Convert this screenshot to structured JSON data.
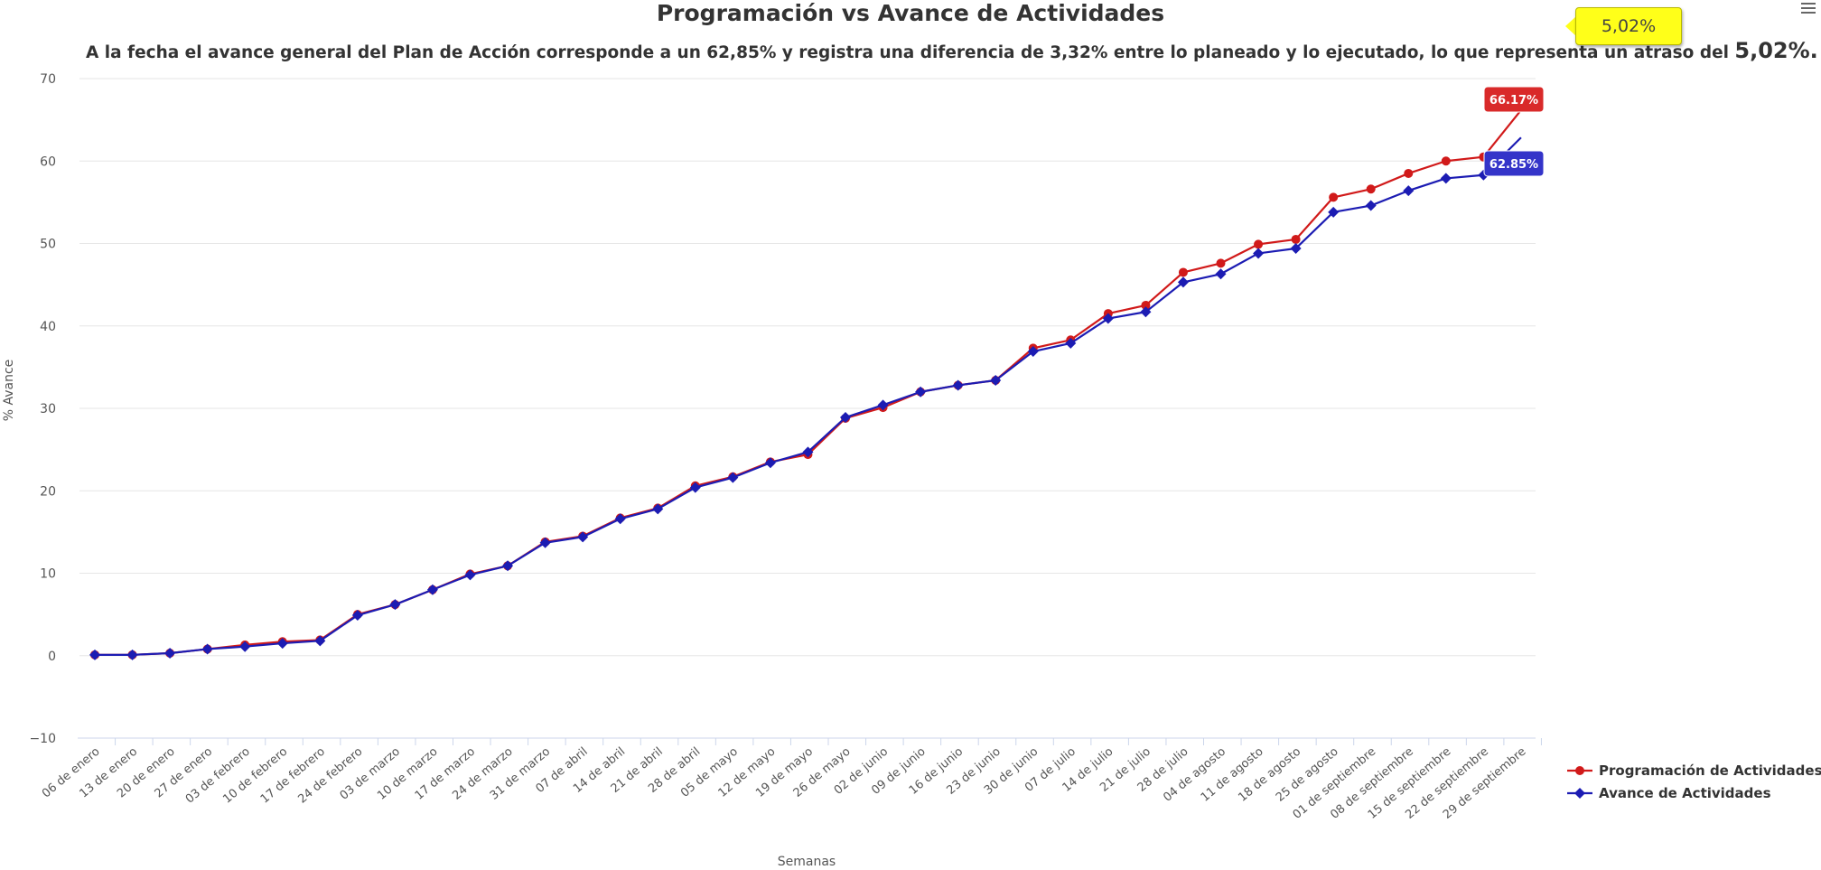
{
  "chart_data": {
    "type": "line",
    "title": "Programación vs Avance de Actividades",
    "subtitle": {
      "text": "A la fecha el avance general del Plan de Acción corresponde a un 62,85% y registra una diferencia de 3,32% entre lo planeado y lo ejecutado, lo que representa un atraso del ",
      "highlight": "5,02%."
    },
    "badge": "5,02%",
    "xlabel": "Semanas",
    "ylabel": "% Avance",
    "ylim": [
      -10,
      70
    ],
    "yticks": [
      -10,
      0,
      10,
      20,
      30,
      40,
      50,
      60,
      70
    ],
    "categories": [
      "06 de enero",
      "13 de enero",
      "20 de enero",
      "27 de enero",
      "03 de febrero",
      "10 de febrero",
      "17 de febrero",
      "24 de febrero",
      "03 de marzo",
      "10 de marzo",
      "17 de marzo",
      "24 de marzo",
      "31 de marzo",
      "07 de abril",
      "14 de abril",
      "21 de abril",
      "28 de abril",
      "05 de mayo",
      "12 de mayo",
      "19 de mayo",
      "26 de mayo",
      "02 de junio",
      "09 de junio",
      "16 de junio",
      "23 de junio",
      "30 de junio",
      "07 de julio",
      "14 de julio",
      "21 de julio",
      "28 de julio",
      "04 de agosto",
      "11 de agosto",
      "18 de agosto",
      "25 de agosto",
      "01 de septiembre",
      "08 de septiembre",
      "15 de septiembre",
      "22 de septiembre",
      "29 de septiembre"
    ],
    "series": [
      {
        "name": "Programación de Actividades",
        "color": "#d11a1a",
        "values": [
          0.1,
          0.1,
          0.3,
          0.8,
          1.3,
          1.7,
          1.9,
          5.0,
          6.2,
          8.0,
          9.9,
          10.9,
          13.8,
          14.5,
          16.7,
          17.9,
          20.6,
          21.7,
          23.5,
          24.4,
          28.8,
          30.1,
          32.0,
          32.8,
          33.4,
          37.3,
          38.3,
          41.5,
          42.5,
          46.5,
          47.6,
          49.9,
          50.5,
          55.6,
          56.6,
          58.5,
          60.0,
          60.5,
          66.17
        ],
        "end_label": "66.17%"
      },
      {
        "name": "Avance de Actividades",
        "color": "#1c1cb3",
        "values": [
          0.1,
          0.1,
          0.3,
          0.8,
          1.1,
          1.5,
          1.8,
          4.9,
          6.2,
          8.0,
          9.8,
          10.9,
          13.7,
          14.4,
          16.6,
          17.8,
          20.4,
          21.6,
          23.4,
          24.7,
          28.9,
          30.4,
          32.0,
          32.8,
          33.4,
          36.9,
          37.9,
          40.9,
          41.7,
          45.3,
          46.3,
          48.8,
          49.4,
          53.8,
          54.6,
          56.4,
          57.9,
          58.3,
          62.85
        ],
        "end_label": "62.85%"
      }
    ],
    "legend": {
      "position": "right-bottom"
    },
    "grid": true
  }
}
